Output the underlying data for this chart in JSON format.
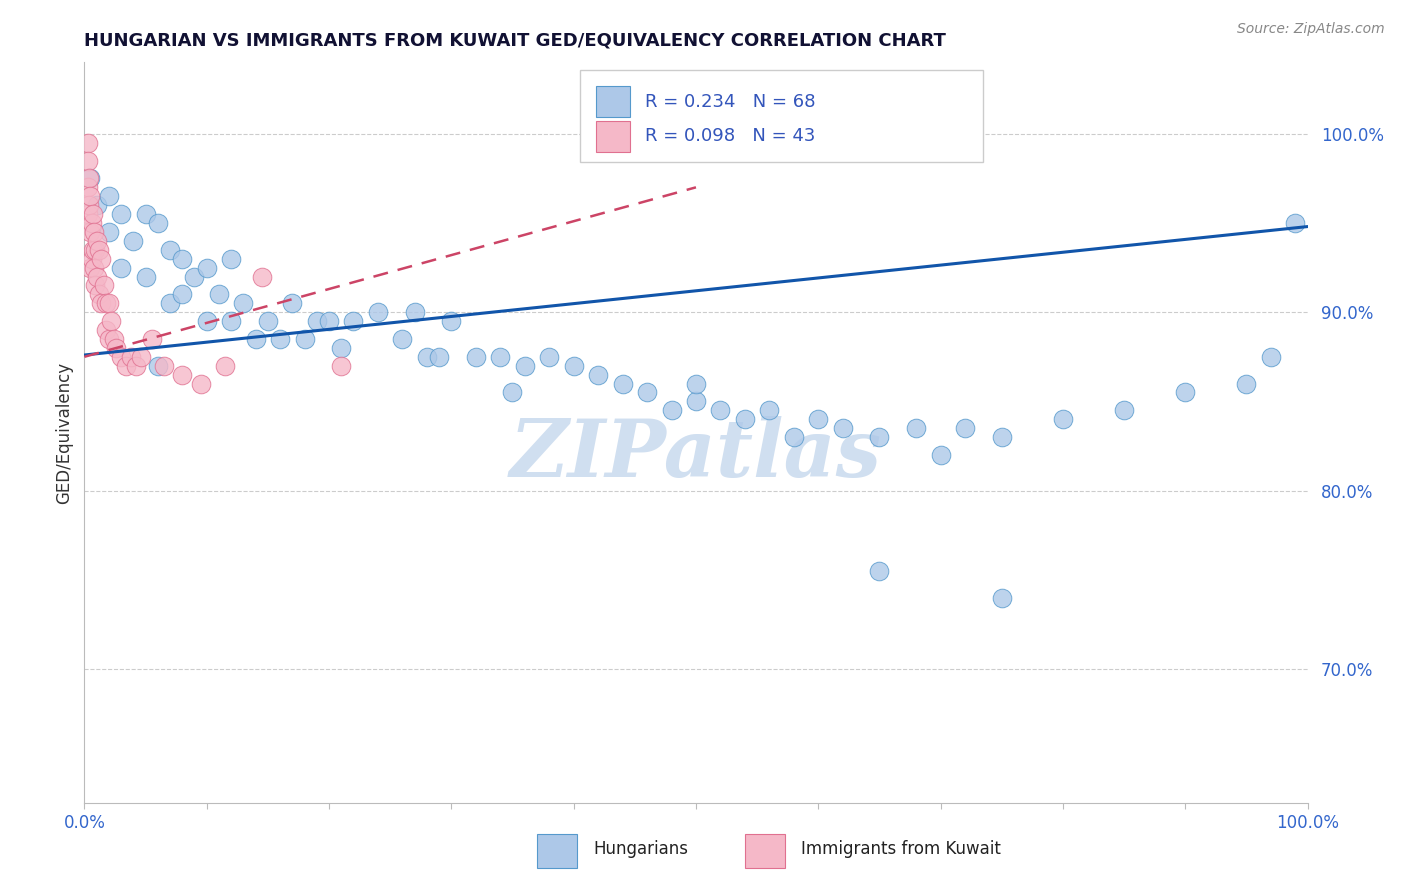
{
  "title": "HUNGARIAN VS IMMIGRANTS FROM KUWAIT GED/EQUIVALENCY CORRELATION CHART",
  "source": "Source: ZipAtlas.com",
  "ylabel": "GED/Equivalency",
  "ytick_labels": [
    "70.0%",
    "80.0%",
    "90.0%",
    "100.0%"
  ],
  "ytick_values": [
    0.7,
    0.8,
    0.9,
    1.0
  ],
  "xlim": [
    0.0,
    1.0
  ],
  "ylim": [
    0.625,
    1.04
  ],
  "legend_blue_label": "R = 0.234   N = 68",
  "legend_pink_label": "R = 0.098   N = 43",
  "legend_blue_bottom_label": "Hungarians",
  "legend_pink_bottom_label": "Immigrants from Kuwait",
  "blue_color": "#adc8e8",
  "blue_edge_color": "#5599cc",
  "blue_line_color": "#1155aa",
  "pink_color": "#f5b8c8",
  "pink_edge_color": "#e07090",
  "pink_line_color": "#cc4466",
  "watermark_color": "#d0dff0",
  "blue_x": [
    0.005,
    0.01,
    0.02,
    0.02,
    0.03,
    0.03,
    0.04,
    0.05,
    0.05,
    0.06,
    0.07,
    0.07,
    0.08,
    0.08,
    0.09,
    0.1,
    0.1,
    0.11,
    0.12,
    0.12,
    0.13,
    0.14,
    0.15,
    0.16,
    0.17,
    0.18,
    0.19,
    0.2,
    0.21,
    0.22,
    0.24,
    0.26,
    0.27,
    0.28,
    0.29,
    0.3,
    0.32,
    0.34,
    0.36,
    0.38,
    0.4,
    0.42,
    0.44,
    0.46,
    0.48,
    0.5,
    0.52,
    0.54,
    0.56,
    0.58,
    0.6,
    0.62,
    0.65,
    0.68,
    0.7,
    0.72,
    0.75,
    0.8,
    0.85,
    0.9,
    0.95,
    0.97,
    0.99,
    0.06,
    0.35,
    0.5,
    0.65,
    0.75
  ],
  "blue_y": [
    0.975,
    0.96,
    0.965,
    0.945,
    0.955,
    0.925,
    0.94,
    0.955,
    0.92,
    0.95,
    0.935,
    0.905,
    0.93,
    0.91,
    0.92,
    0.925,
    0.895,
    0.91,
    0.93,
    0.895,
    0.905,
    0.885,
    0.895,
    0.885,
    0.905,
    0.885,
    0.895,
    0.895,
    0.88,
    0.895,
    0.9,
    0.885,
    0.9,
    0.875,
    0.875,
    0.895,
    0.875,
    0.875,
    0.87,
    0.875,
    0.87,
    0.865,
    0.86,
    0.855,
    0.845,
    0.85,
    0.845,
    0.84,
    0.845,
    0.83,
    0.84,
    0.835,
    0.83,
    0.835,
    0.82,
    0.835,
    0.83,
    0.84,
    0.845,
    0.855,
    0.86,
    0.875,
    0.95,
    0.87,
    0.855,
    0.86,
    0.755,
    0.74
  ],
  "pink_x": [
    0.003,
    0.003,
    0.003,
    0.003,
    0.004,
    0.004,
    0.005,
    0.005,
    0.005,
    0.006,
    0.006,
    0.007,
    0.007,
    0.008,
    0.008,
    0.009,
    0.009,
    0.01,
    0.01,
    0.012,
    0.012,
    0.014,
    0.014,
    0.016,
    0.018,
    0.018,
    0.02,
    0.02,
    0.022,
    0.024,
    0.026,
    0.03,
    0.034,
    0.038,
    0.042,
    0.046,
    0.055,
    0.065,
    0.08,
    0.095,
    0.115,
    0.145,
    0.21
  ],
  "pink_y": [
    0.995,
    0.985,
    0.97,
    0.955,
    0.975,
    0.96,
    0.965,
    0.945,
    0.925,
    0.95,
    0.93,
    0.955,
    0.935,
    0.945,
    0.925,
    0.935,
    0.915,
    0.94,
    0.92,
    0.935,
    0.91,
    0.93,
    0.905,
    0.915,
    0.905,
    0.89,
    0.905,
    0.885,
    0.895,
    0.885,
    0.88,
    0.875,
    0.87,
    0.875,
    0.87,
    0.875,
    0.885,
    0.87,
    0.865,
    0.86,
    0.87,
    0.92,
    0.87
  ]
}
